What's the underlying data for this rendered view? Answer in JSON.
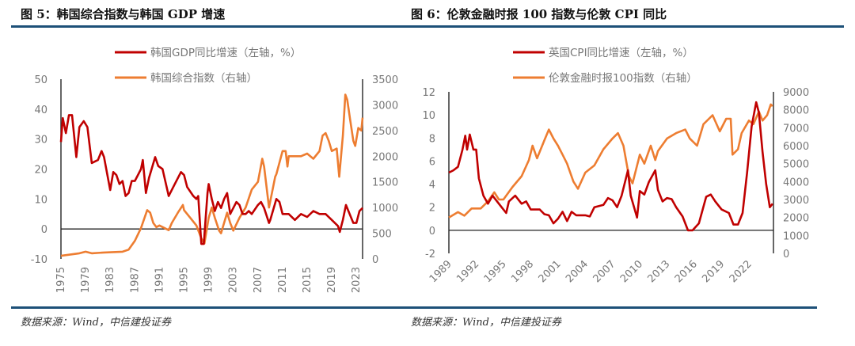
{
  "figure_left": {
    "title": "图 5：韩国综合指数与韩国 GDP 增速",
    "source": "数据来源：Wind，中信建投证券"
  },
  "figure_right": {
    "title": "图 6：伦敦金融时报 100 指数与伦敦 CPI 同比",
    "source": "数据来源：Wind，中信建投证券"
  },
  "colors": {
    "rule": "#1d5078",
    "red": "#c00000",
    "orange": "#ed7d31"
  },
  "chart_data": [
    {
      "type": "line",
      "x_type": "year",
      "xlim": [
        1975,
        2024
      ],
      "x_ticks": [
        "1975",
        "1979",
        "1983",
        "1987",
        "1991",
        "1995",
        "1999",
        "2003",
        "2007",
        "2011",
        "2015",
        "2019",
        "2023"
      ],
      "y_left": {
        "lim": [
          -10,
          50
        ],
        "ticks": [
          "-10",
          "0",
          "10",
          "20",
          "30",
          "40",
          "50"
        ]
      },
      "y_right": {
        "lim": [
          0,
          3500
        ],
        "ticks": [
          "0",
          "500",
          "1000",
          "1500",
          "2000",
          "2500",
          "3000",
          "3500"
        ]
      },
      "legend_placement": "top-center",
      "grid": false,
      "series": [
        {
          "name": "韩国GDP同比增速（左轴，%）",
          "axis": "left",
          "color": "#c00000",
          "x": [
            1975,
            1975.3,
            1975.8,
            1976.3,
            1976.8,
            1977.5,
            1978,
            1978.7,
            1979.3,
            1980,
            1981,
            1981.6,
            1982,
            1983,
            1983.5,
            1984,
            1984.5,
            1985,
            1985.5,
            1986,
            1986.5,
            1987,
            1987.5,
            1988,
            1988.3,
            1988.8,
            1989.3,
            1990.3,
            1990.8,
            1991.5,
            1992.5,
            1993.5,
            1994.5,
            1995,
            1995.5,
            1996.5,
            1997,
            1997.3,
            1997.8,
            1998.2,
            1998.8,
            1999,
            1999.5,
            2000,
            2000.5,
            2001,
            2001.5,
            2002,
            2002.5,
            2003,
            2003.5,
            2004,
            2004.5,
            2005,
            2005.5,
            2006,
            2007,
            2007.5,
            2008,
            2008.8,
            2009,
            2010,
            2010.5,
            2011,
            2012,
            2013,
            2014,
            2015,
            2016,
            2017,
            2018,
            2019,
            2020,
            2020.3,
            2020.8,
            2021.3,
            2021.7,
            2022.5,
            2023,
            2023.5,
            2024
          ],
          "y": [
            29,
            37,
            32,
            38,
            38,
            24,
            34,
            36,
            34,
            22,
            23,
            26,
            24,
            13,
            19,
            18,
            15,
            16,
            11,
            12,
            16,
            16,
            18,
            20,
            23,
            12,
            17,
            24,
            21,
            20,
            11,
            15,
            19,
            18,
            14,
            11,
            10,
            11,
            -5,
            -5,
            12,
            15,
            10,
            6,
            9,
            7,
            10,
            12,
            5,
            7,
            9,
            8,
            5,
            5,
            6,
            5,
            8,
            9,
            7,
            2,
            3,
            10,
            9,
            5,
            5,
            3,
            5,
            4,
            6,
            5,
            5,
            3,
            1,
            -1,
            3,
            8,
            6,
            2,
            2,
            6,
            7
          ]
        },
        {
          "name": "韩国综合指数（右轴）",
          "axis": "right",
          "color": "#ed7d31",
          "x": [
            1975,
            1978,
            1979,
            1980,
            1982,
            1985,
            1986,
            1987,
            1988,
            1989,
            1989.5,
            1990,
            1990.5,
            1991,
            1992.5,
            1993,
            1994,
            1994.8,
            1995,
            1996,
            1997,
            1997.8,
            1998.3,
            1999,
            1999.5,
            2000,
            2000.7,
            2001,
            2002,
            2002.5,
            2003,
            2004,
            2005,
            2006,
            2007,
            2007.7,
            2008,
            2008.8,
            2009.3,
            2009.8,
            2010,
            2011,
            2011.5,
            2011.8,
            2012,
            2013,
            2014,
            2015,
            2016,
            2017,
            2017.5,
            2018,
            2018.5,
            2019,
            2019.8,
            2020.2,
            2020.8,
            2021.2,
            2021.5,
            2022,
            2022.5,
            2022.8,
            2023.3,
            2023.8,
            2024
          ],
          "y": [
            60,
            110,
            140,
            110,
            125,
            140,
            180,
            350,
            600,
            950,
            900,
            700,
            620,
            650,
            560,
            700,
            900,
            1050,
            950,
            800,
            650,
            400,
            300,
            800,
            1000,
            800,
            550,
            500,
            900,
            700,
            550,
            800,
            1000,
            1350,
            1500,
            1950,
            1800,
            1000,
            1300,
            1600,
            1650,
            2100,
            2100,
            1800,
            2000,
            2000,
            2000,
            2050,
            1950,
            2100,
            2400,
            2450,
            2300,
            2100,
            2150,
            1600,
            2400,
            3200,
            3100,
            2700,
            2300,
            2200,
            2550,
            2500,
            2750
          ]
        }
      ]
    },
    {
      "type": "line",
      "x_type": "year",
      "xlim": [
        1989,
        2024.7
      ],
      "x_ticks": [
        "1989",
        "1992",
        "1995",
        "1998",
        "2001",
        "2004",
        "2007",
        "2010",
        "2013",
        "2016",
        "2019",
        "2022"
      ],
      "y_left": {
        "lim": [
          -2,
          12
        ],
        "ticks": [
          "-2",
          "0",
          "2",
          "4",
          "6",
          "8",
          "10",
          "12"
        ]
      },
      "y_right": {
        "lim": [
          0,
          9000
        ],
        "ticks": [
          "0",
          "1000",
          "2000",
          "3000",
          "4000",
          "5000",
          "6000",
          "7000",
          "8000",
          "9000"
        ]
      },
      "legend_placement": "top-center",
      "grid": false,
      "series": [
        {
          "name": "英国CPI同比增速（左轴，%）",
          "axis": "left",
          "color": "#c00000",
          "x": [
            1989,
            1989.5,
            1990,
            1990.5,
            1990.8,
            1991,
            1991.3,
            1991.7,
            1992,
            1992.3,
            1992.8,
            1993.3,
            1993.8,
            1994.3,
            1994.8,
            1995.3,
            1995.6,
            1996.3,
            1997,
            1997.5,
            1998,
            1999,
            1999.5,
            2000,
            2000.5,
            2001,
            2001.5,
            2002,
            2002.5,
            2003,
            2004,
            2004.5,
            2005,
            2006,
            2006.5,
            2007,
            2007.5,
            2008,
            2008.7,
            2009,
            2009.7,
            2010,
            2010.5,
            2011,
            2011.7,
            2012,
            2012.5,
            2013,
            2013.5,
            2014,
            2014.7,
            2015.3,
            2015.8,
            2016.5,
            2017.3,
            2017.8,
            2018.3,
            2019,
            2019.8,
            2020.3,
            2020.8,
            2021.3,
            2021.8,
            2022.3,
            2022.8,
            2023.1,
            2023.5,
            2023.9,
            2024.3,
            2024.6
          ],
          "y": [
            5,
            5.2,
            5.5,
            7,
            8.2,
            7,
            8.3,
            7,
            7,
            4.5,
            3,
            2.3,
            3,
            2.5,
            2,
            1.5,
            2.5,
            3,
            2.3,
            2.5,
            1.8,
            1.8,
            1.4,
            1.3,
            0.6,
            1,
            1.6,
            0.8,
            1.6,
            1.3,
            1.3,
            1.2,
            2,
            2.2,
            2.8,
            2.6,
            2,
            3,
            5.2,
            3,
            1.1,
            3.4,
            3.1,
            4.2,
            5.2,
            3.5,
            2.5,
            2.8,
            2.7,
            2,
            1.2,
            0,
            0,
            0.6,
            2.9,
            3.1,
            2.5,
            1.8,
            1.5,
            0.5,
            0.5,
            1.5,
            5,
            9,
            11.1,
            10.2,
            6.8,
            4,
            2,
            2.3
          ]
        },
        {
          "name": "伦敦金融时报100指数（右轴）",
          "axis": "right",
          "color": "#ed7d31",
          "x": [
            1989,
            1990,
            1990.7,
            1991.5,
            1992.5,
            1993.3,
            1994,
            1994.5,
            1995,
            1996,
            1997,
            1997.8,
            1998.2,
            1998.7,
            1999.5,
            2000,
            2000.5,
            2001,
            2001.5,
            2002,
            2002.7,
            2003.2,
            2004,
            2005,
            2006,
            2007,
            2007.6,
            2008.2,
            2008.8,
            2009.2,
            2010,
            2010.5,
            2011.2,
            2011.7,
            2012,
            2013,
            2014,
            2015,
            2015.5,
            2016.3,
            2017,
            2018,
            2018.8,
            2019.5,
            2020,
            2020.2,
            2020.8,
            2021.2,
            2022,
            2022.5,
            2023.1,
            2023.5,
            2024,
            2024.4,
            2024.6
          ],
          "y": [
            2000,
            2300,
            2100,
            2500,
            2500,
            2900,
            3400,
            3000,
            3000,
            3700,
            4300,
            5200,
            6000,
            5300,
            6300,
            6900,
            6400,
            6000,
            5500,
            5000,
            4000,
            3600,
            4500,
            4900,
            5800,
            6400,
            6700,
            6000,
            4300,
            3900,
            5500,
            5000,
            6000,
            5200,
            5700,
            6400,
            6700,
            6900,
            6400,
            6000,
            7200,
            7700,
            6800,
            7500,
            7500,
            5500,
            5800,
            6700,
            7400,
            7200,
            7900,
            7400,
            7700,
            8300,
            8200
          ]
        }
      ]
    }
  ]
}
